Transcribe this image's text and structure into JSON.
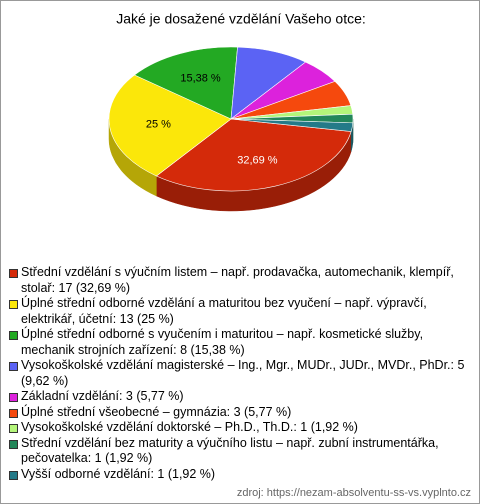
{
  "chart_data": {
    "type": "pie",
    "title": "Jaké je dosažené vzdělání Vašeho otce:",
    "categories": [
      "Střední vzdělání s výučním listem – např. prodavačka, automechanik, klempíř, stolař: 17 (32,69 %)",
      "Úplné střední odborné vzdělání a maturitou bez vyučení – např. výpravčí, elektrikář, účetní: 13 (25 %)",
      "Úplné střední odborné s vyučením i maturitou – např. kosmetické služby, mechanik strojních zařízení: 8 (15,38 %)",
      "Vysokoškolské vzdělání magisterské – Ing., Mgr., MUDr., JUDr., MVDr., PhDr.: 5 (9,62 %)",
      "Základní vzdělání: 3 (5,77 %)",
      "Úplné střední všeobecné – gymnázia: 3 (5,77 %)",
      "Vysokoškolské vzdělání doktorské – Ph.D., Th.D.: 1 (1,92 %)",
      "Střední vzdělání bez maturity a výučního listu – např. zubní instrumentářka, pečovatelka: 1 (1,92 %)",
      "Vyšší odborné vzdělání: 1 (1,92 %)"
    ],
    "values": [
      32.69,
      25,
      15.38,
      9.62,
      5.77,
      5.77,
      1.92,
      1.92,
      1.92
    ],
    "value_labels": [
      "32,69 %",
      "25 %",
      "15,38 %",
      null,
      null,
      null,
      null,
      null,
      null
    ],
    "colors": [
      "#d42a0a",
      "#fbe70a",
      "#23a923",
      "#5b63f4",
      "#dc22dc",
      "#f5490d",
      "#b4f57a",
      "#23875a",
      "#247a88"
    ],
    "source": "zdroj: https://nezam-absolventu-ss-vs.vyplnto.cz"
  }
}
